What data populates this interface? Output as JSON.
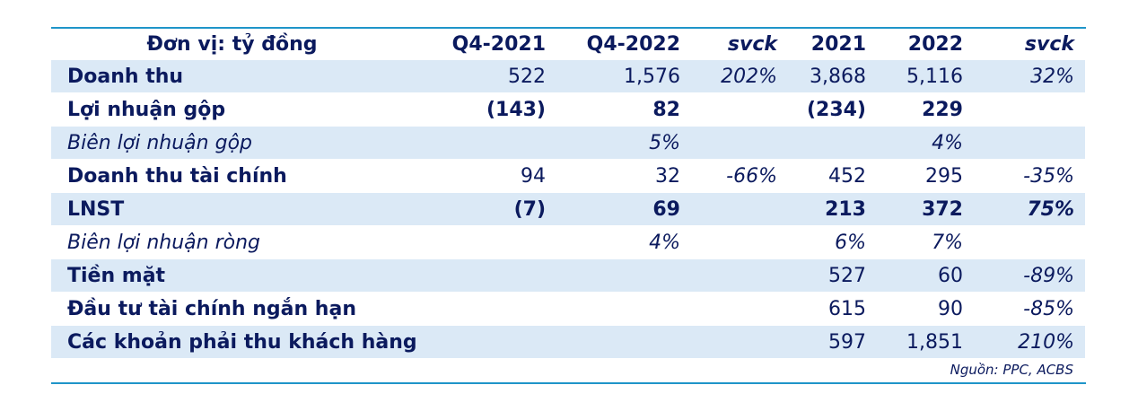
{
  "table": {
    "header": {
      "label": "Đơn vị: tỷ đồng",
      "q4_2021": "Q4-2021",
      "q4_2022": "Q4-2022",
      "svck_q": "svck",
      "y2021": "2021",
      "y2022": "2022",
      "svck_y": "svck"
    },
    "rows": [
      {
        "label": "Doanh thu",
        "q4_2021": "522",
        "q4_2022": "1,576",
        "svck_q": "202%",
        "y2021": "3,868",
        "y2022": "5,116",
        "svck_y": "32%"
      },
      {
        "label": "Lợi nhuận gộp",
        "q4_2021": "(143)",
        "q4_2022": "82",
        "svck_q": "",
        "y2021": "(234)",
        "y2022": "229",
        "svck_y": ""
      },
      {
        "label": "Biên lợi nhuận gộp",
        "q4_2021": "",
        "q4_2022": "5%",
        "svck_q": "",
        "y2021": "",
        "y2022": "4%",
        "svck_y": ""
      },
      {
        "label": "Doanh thu tài chính",
        "q4_2021": "94",
        "q4_2022": "32",
        "svck_q": "-66%",
        "y2021": "452",
        "y2022": "295",
        "svck_y": "-35%"
      },
      {
        "label": "LNST",
        "q4_2021": "(7)",
        "q4_2022": "69",
        "svck_q": "",
        "y2021": "213",
        "y2022": "372",
        "svck_y": "75%"
      },
      {
        "label": "Biên lợi nhuận ròng",
        "q4_2021": "",
        "q4_2022": "4%",
        "svck_q": "",
        "y2021": "6%",
        "y2022": "7%",
        "svck_y": ""
      },
      {
        "label": "Tiền mặt",
        "q4_2021": "",
        "q4_2022": "",
        "svck_q": "",
        "y2021": "527",
        "y2022": "60",
        "svck_y": "-89%"
      },
      {
        "label": "Đầu tư tài chính ngắn hạn",
        "q4_2021": "",
        "q4_2022": "",
        "svck_q": "",
        "y2021": "615",
        "y2022": "90",
        "svck_y": "-85%"
      },
      {
        "label": "Các khoản phải thu khách hàng",
        "q4_2021": "",
        "q4_2022": "",
        "svck_q": "",
        "y2021": "597",
        "y2022": "1,851",
        "svck_y": "210%"
      }
    ],
    "source": "Nguồn: PPC, ACBS"
  }
}
